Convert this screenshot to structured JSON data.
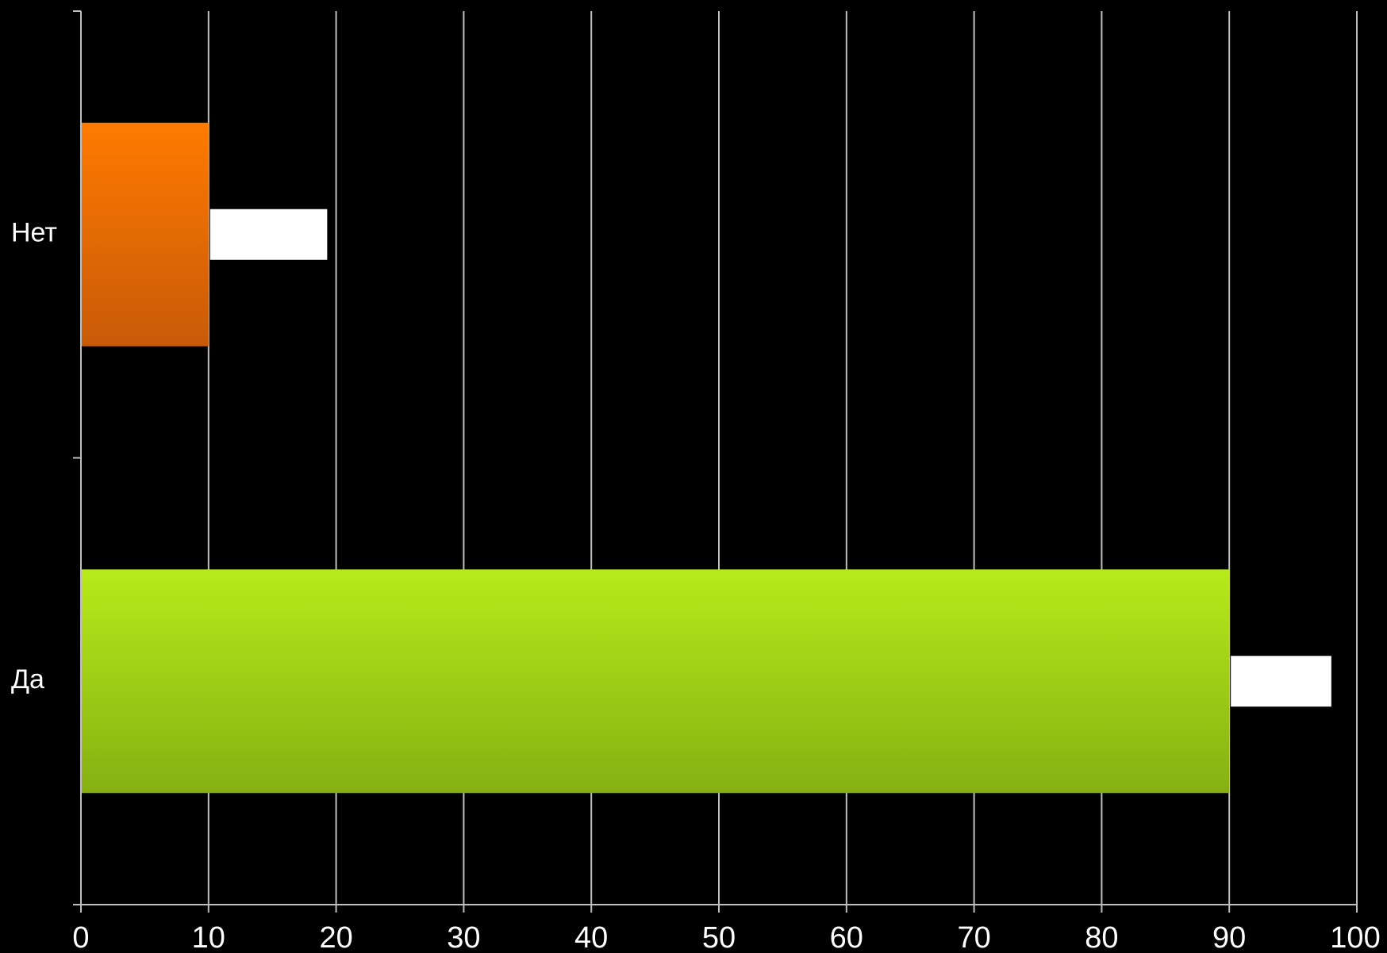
{
  "chart_data": {
    "type": "bar",
    "orientation": "horizontal",
    "categories": [
      "Нет",
      "Да"
    ],
    "values": [
      10,
      90
    ],
    "callout_boxes": [
      {
        "category": "Нет",
        "start": 10,
        "end": 19.3,
        "color": "#ffffff"
      },
      {
        "category": "Да",
        "start": 90,
        "end": 98,
        "color": "#ffffff"
      }
    ],
    "xlim": [
      0,
      100
    ],
    "xticks": [
      0,
      10,
      20,
      30,
      40,
      50,
      60,
      70,
      80,
      90,
      100
    ],
    "xtick_labels": [
      "0",
      "10",
      "20",
      "30",
      "40",
      "50",
      "60",
      "70",
      "80",
      "90",
      "100"
    ],
    "title": "",
    "xlabel": "",
    "ylabel": "",
    "grid": "vertical",
    "legend": "none",
    "colors": {
      "background": "#000000",
      "grid": "#bfbfbf",
      "axis": "#bfbfbf",
      "text": "#ffffff",
      "bar_net_top": "#ff7a00",
      "bar_net_bottom": "#c85a08",
      "bar_da_top": "#b8ea1a",
      "bar_da_bottom": "#86b012",
      "callout_fill": "#ffffff"
    }
  }
}
